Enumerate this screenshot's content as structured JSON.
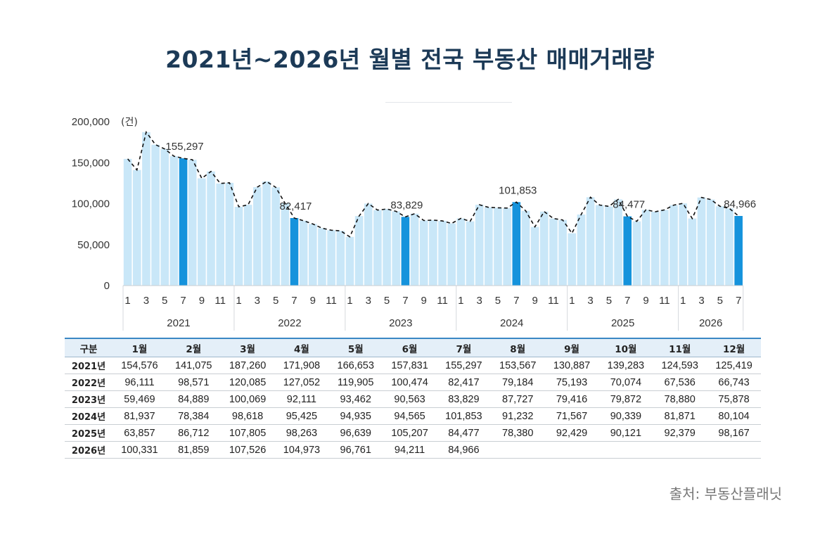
{
  "title": "2021년~2026년 월별 전국 부동산 매매거래량",
  "source": "출처: 부동산플래닛",
  "colors": {
    "bar_light": "#c9e7f8",
    "bar_highlight": "#1593dc",
    "title": "#1c3a57",
    "table_header_bg": "#e4eff8",
    "table_header_line": "#3a87c4"
  },
  "chart_data": {
    "type": "bar",
    "unit": "(건)",
    "ylim": [
      0,
      200000
    ],
    "yticks": [
      "200,000",
      "150,000",
      "100,000",
      "50,000",
      "0"
    ],
    "month_tick_labels": [
      "1",
      "3",
      "5",
      "7",
      "9",
      "11"
    ],
    "highlight_month": 7,
    "overlay": "dashed line",
    "series": [
      {
        "year": "2021",
        "values": [
          154576,
          141075,
          187260,
          171908,
          166653,
          157831,
          155297,
          153567,
          130887,
          139283,
          124593,
          125419
        ],
        "label": "155,297"
      },
      {
        "year": "2022",
        "values": [
          96111,
          98571,
          120085,
          127052,
          119905,
          100474,
          82417,
          79184,
          75193,
          70074,
          67536,
          66743
        ],
        "label": "82,417"
      },
      {
        "year": "2023",
        "values": [
          59469,
          84889,
          100069,
          92111,
          93462,
          90563,
          83829,
          87727,
          79416,
          79872,
          78880,
          75878
        ],
        "label": "83,829"
      },
      {
        "year": "2024",
        "values": [
          81937,
          78384,
          98618,
          95425,
          94935,
          94565,
          101853,
          91232,
          71567,
          90339,
          81871,
          80104
        ],
        "label": "101,853"
      },
      {
        "year": "2025",
        "values": [
          63857,
          86712,
          107805,
          98263,
          96639,
          105207,
          84477,
          78380,
          92429,
          90121,
          92379,
          98167
        ],
        "label": "84,477"
      },
      {
        "year": "2026",
        "values": [
          100331,
          81859,
          107526,
          104973,
          96761,
          94211,
          84966
        ],
        "label": "84,966"
      }
    ]
  },
  "table": {
    "headers": [
      "구분",
      "1월",
      "2월",
      "3월",
      "4월",
      "5월",
      "6월",
      "7월",
      "8월",
      "9월",
      "10월",
      "11월",
      "12월"
    ],
    "rows": [
      [
        "2021년",
        "154,576",
        "141,075",
        "187,260",
        "171,908",
        "166,653",
        "157,831",
        "155,297",
        "153,567",
        "130,887",
        "139,283",
        "124,593",
        "125,419"
      ],
      [
        "2022년",
        "96,111",
        "98,571",
        "120,085",
        "127,052",
        "119,905",
        "100,474",
        "82,417",
        "79,184",
        "75,193",
        "70,074",
        "67,536",
        "66,743"
      ],
      [
        "2023년",
        "59,469",
        "84,889",
        "100,069",
        "92,111",
        "93,462",
        "90,563",
        "83,829",
        "87,727",
        "79,416",
        "79,872",
        "78,880",
        "75,878"
      ],
      [
        "2024년",
        "81,937",
        "78,384",
        "98,618",
        "95,425",
        "94,935",
        "94,565",
        "101,853",
        "91,232",
        "71,567",
        "90,339",
        "81,871",
        "80,104"
      ],
      [
        "2025년",
        "63,857",
        "86,712",
        "107,805",
        "98,263",
        "96,639",
        "105,207",
        "84,477",
        "78,380",
        "92,429",
        "90,121",
        "92,379",
        "98,167"
      ],
      [
        "2026년",
        "100,331",
        "81,859",
        "107,526",
        "104,973",
        "96,761",
        "94,211",
        "84,966",
        "",
        "",
        "",
        "",
        ""
      ]
    ]
  }
}
